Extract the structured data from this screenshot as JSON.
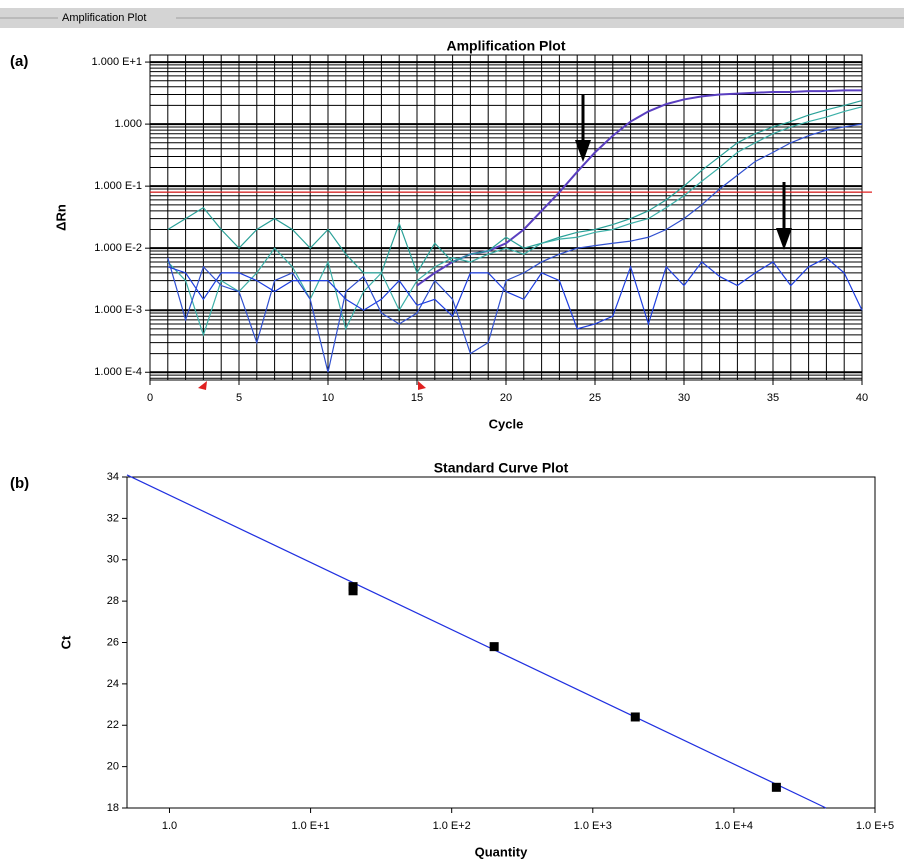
{
  "header": "Amplification Plot",
  "chart_data": [
    {
      "type": "line",
      "panel_label": "(a)",
      "title": "Amplification Plot",
      "xlabel": "Cycle",
      "ylabel": "ΔRn",
      "ylog": true,
      "grid": true,
      "minor_grid": true,
      "xlim": [
        0,
        40
      ],
      "xticks": [
        0,
        5,
        10,
        15,
        20,
        25,
        30,
        35,
        40
      ],
      "ylim": [
        7.5e-05,
        13
      ],
      "yticks": [
        {
          "value": 10,
          "label": "1.000 E+1"
        },
        {
          "value": 1,
          "label": "1.000"
        },
        {
          "value": 0.1,
          "label": "1.000 E-1"
        },
        {
          "value": 0.01,
          "label": "1.000 E-2"
        },
        {
          "value": 0.001,
          "label": "1.000 E-3"
        },
        {
          "value": 0.0001,
          "label": "1.000 E-4"
        }
      ],
      "threshold": {
        "value": 0.08,
        "color": "#e02020"
      },
      "x": [
        1,
        2,
        3,
        4,
        5,
        6,
        7,
        8,
        9,
        10,
        11,
        12,
        13,
        14,
        15,
        16,
        17,
        18,
        19,
        20,
        21,
        22,
        23,
        24,
        25,
        26,
        27,
        28,
        29,
        30,
        31,
        32,
        33,
        34,
        35,
        36,
        37,
        38,
        39,
        40
      ],
      "series": [
        {
          "color": "#5a3fc0",
          "values": [
            null,
            null,
            null,
            null,
            null,
            null,
            null,
            null,
            null,
            null,
            null,
            null,
            null,
            null,
            0.0025,
            0.004,
            0.006,
            0.008,
            0.009,
            0.012,
            0.02,
            0.04,
            0.08,
            0.17,
            0.35,
            0.65,
            1.1,
            1.6,
            2.1,
            2.5,
            2.8,
            3.0,
            3.1,
            3.2,
            3.3,
            3.3,
            3.4,
            3.4,
            3.5,
            3.5
          ]
        },
        {
          "color": "#2aa198",
          "values": [
            0.02,
            0.03,
            0.045,
            0.02,
            0.01,
            0.02,
            0.03,
            0.02,
            0.01,
            0.02,
            0.008,
            0.004,
            0.004,
            0.025,
            0.004,
            0.012,
            0.006,
            0.008,
            0.009,
            0.015,
            0.01,
            0.012,
            0.015,
            0.018,
            0.02,
            0.024,
            0.03,
            0.04,
            0.06,
            0.1,
            0.18,
            0.3,
            0.5,
            0.7,
            0.9,
            1.1,
            1.4,
            1.7,
            2.0,
            2.4
          ]
        },
        {
          "color": "#3cb0a8",
          "values": [
            0.006,
            0.003,
            0.0004,
            0.003,
            0.002,
            0.004,
            0.01,
            0.005,
            0.0015,
            0.006,
            0.0005,
            0.002,
            0.004,
            0.001,
            0.003,
            0.005,
            0.007,
            0.006,
            0.008,
            0.01,
            0.008,
            0.012,
            0.014,
            0.015,
            0.018,
            0.02,
            0.025,
            0.03,
            0.045,
            0.07,
            0.12,
            0.2,
            0.35,
            0.5,
            0.7,
            0.9,
            1.1,
            1.3,
            1.6,
            1.9
          ]
        },
        {
          "color": "#3050d0",
          "values": [
            0.007,
            0.0007,
            0.005,
            0.0025,
            0.002,
            0.0003,
            0.003,
            0.004,
            0.0015,
            0.0001,
            0.002,
            0.0035,
            0.0009,
            0.0006,
            0.0009,
            0.003,
            0.0015,
            0.0002,
            0.0003,
            0.003,
            0.004,
            0.006,
            0.008,
            0.01,
            0.011,
            0.012,
            0.013,
            0.015,
            0.02,
            0.03,
            0.05,
            0.09,
            0.15,
            0.25,
            0.35,
            0.5,
            0.65,
            0.8,
            0.9,
            1.0
          ]
        },
        {
          "color": "#1f3fe0",
          "values": [
            0.005,
            0.004,
            0.0015,
            0.004,
            0.004,
            0.003,
            0.002,
            0.003,
            0.003,
            0.003,
            0.0015,
            0.001,
            0.0015,
            0.003,
            0.0012,
            0.0015,
            0.0008,
            0.004,
            0.004,
            0.002,
            0.0015,
            0.004,
            0.003,
            0.0005,
            0.0006,
            0.0008,
            0.005,
            0.0006,
            0.005,
            0.0025,
            0.006,
            0.0035,
            0.0025,
            0.004,
            0.006,
            0.0025,
            0.005,
            0.007,
            0.004,
            0.001
          ]
        }
      ]
    },
    {
      "type": "scatter",
      "panel_label": "(b)",
      "title": "Standard Curve Plot",
      "xlabel": "Quantity",
      "ylabel": "Ct",
      "xlog": true,
      "color": "#000000",
      "line_color": "#2030e0",
      "xlim": [
        0.5,
        100000
      ],
      "xticks": [
        {
          "value": 1,
          "label": "1.0"
        },
        {
          "value": 10,
          "label": "1.0 E+1"
        },
        {
          "value": 100,
          "label": "1.0 E+2"
        },
        {
          "value": 1000,
          "label": "1.0 E+3"
        },
        {
          "value": 10000,
          "label": "1.0 E+4"
        },
        {
          "value": 100000,
          "label": "1.0 E+5"
        }
      ],
      "ylim": [
        18,
        34
      ],
      "yticks": [
        18,
        20,
        22,
        24,
        26,
        28,
        30,
        32,
        34
      ],
      "x": [
        20,
        20,
        200,
        2000,
        20000
      ],
      "values": [
        28.7,
        28.5,
        25.8,
        22.4,
        19.0
      ],
      "fit_line": {
        "x": [
          0.5,
          45000
        ],
        "y": [
          34.1,
          18
        ]
      }
    }
  ]
}
